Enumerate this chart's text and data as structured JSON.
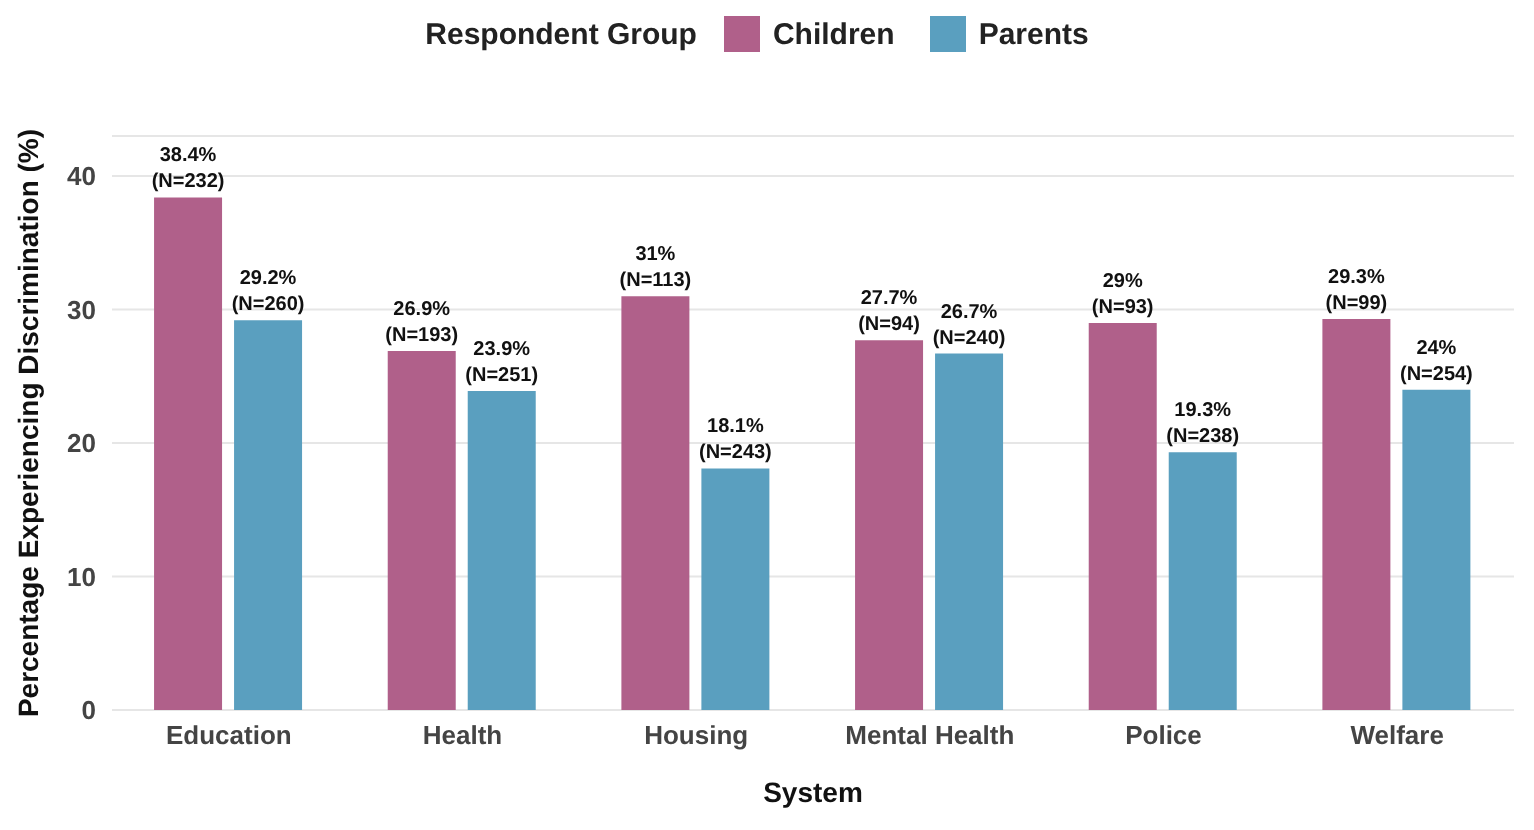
{
  "chart_data": {
    "type": "bar",
    "xlabel": "System",
    "ylabel": "Percentage Experiencing Discrimination (%)",
    "legend_title": "Respondent Group",
    "legend": "top",
    "categories": [
      "Education",
      "Health",
      "Housing",
      "Mental Health",
      "Police",
      "Welfare"
    ],
    "series": [
      {
        "name": "Children",
        "color": "#b0608a",
        "values": [
          38.4,
          26.9,
          31,
          27.7,
          29,
          29.3
        ],
        "value_labels": [
          "38.4%\n(N=232)",
          "26.9%\n(N=193)",
          "31%\n(N=113)",
          "27.7%\n(N=94)",
          "29%\n(N=93)",
          "29.3%\n(N=99)"
        ]
      },
      {
        "name": "Parents",
        "color": "#5a9fbf",
        "values": [
          29.2,
          23.9,
          18.1,
          26.7,
          19.3,
          24
        ],
        "value_labels": [
          "29.2%\n(N=260)",
          "23.9%\n(N=251)",
          "18.1%\n(N=243)",
          "26.7%\n(N=240)",
          "19.3%\n(N=238)",
          "24%\n(N=254)"
        ]
      }
    ],
    "ylim": [
      0,
      43
    ],
    "yticks": [
      0,
      10,
      20,
      30,
      40
    ],
    "grid": "y"
  }
}
